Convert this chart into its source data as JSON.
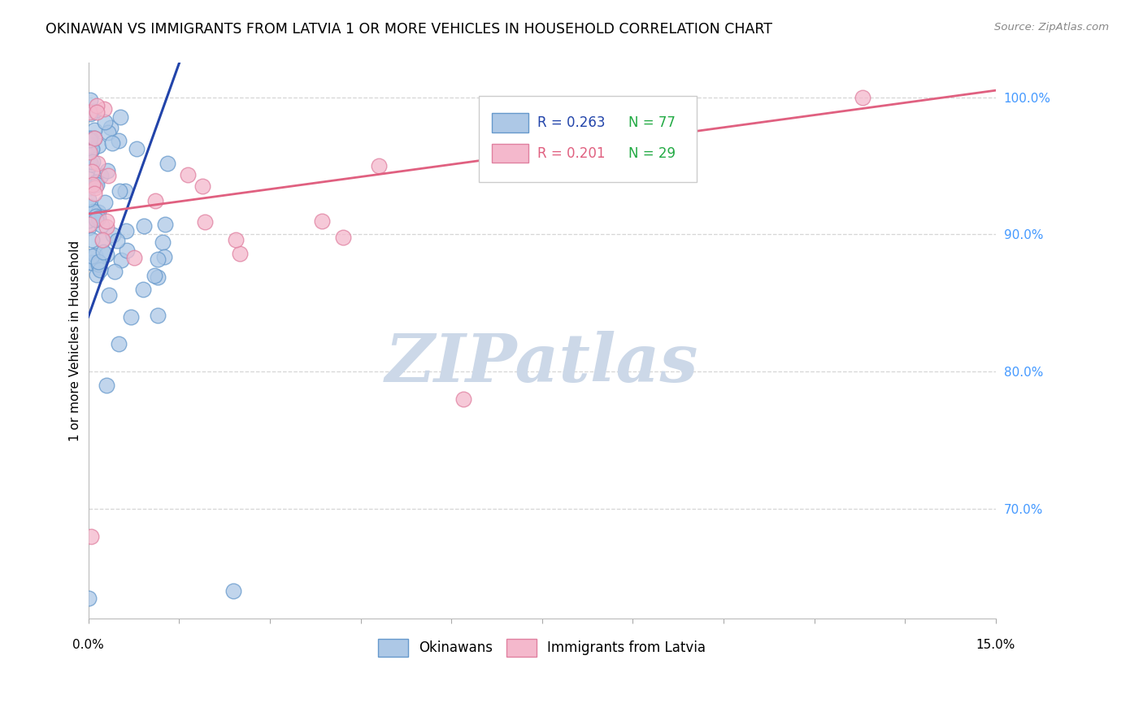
{
  "title": "OKINAWAN VS IMMIGRANTS FROM LATVIA 1 OR MORE VEHICLES IN HOUSEHOLD CORRELATION CHART",
  "source": "Source: ZipAtlas.com",
  "ylabel": "1 or more Vehicles in Household",
  "xmin": 0.0,
  "xmax": 15.0,
  "ymin": 62.0,
  "ymax": 102.5,
  "yticks_right": [
    70.0,
    80.0,
    90.0,
    100.0
  ],
  "grid_color": "#cccccc",
  "background_color": "#ffffff",
  "okinawan_color": "#adc8e6",
  "okinawan_edge_color": "#6699cc",
  "latvia_color": "#f4b8cc",
  "latvia_edge_color": "#e080a0",
  "regression_blue_color": "#2244aa",
  "regression_pink_color": "#e06080",
  "legend_blue_text": "R = 0.263",
  "legend_blue_n": "N = 77",
  "legend_pink_text": "R = 0.201",
  "legend_pink_n": "N = 29",
  "legend_text_color_R": "#2244aa",
  "legend_text_color_N": "#22aa44",
  "watermark_text": "ZIPatlas",
  "watermark_color": "#ccd8e8",
  "watermark_fontsize": 60
}
